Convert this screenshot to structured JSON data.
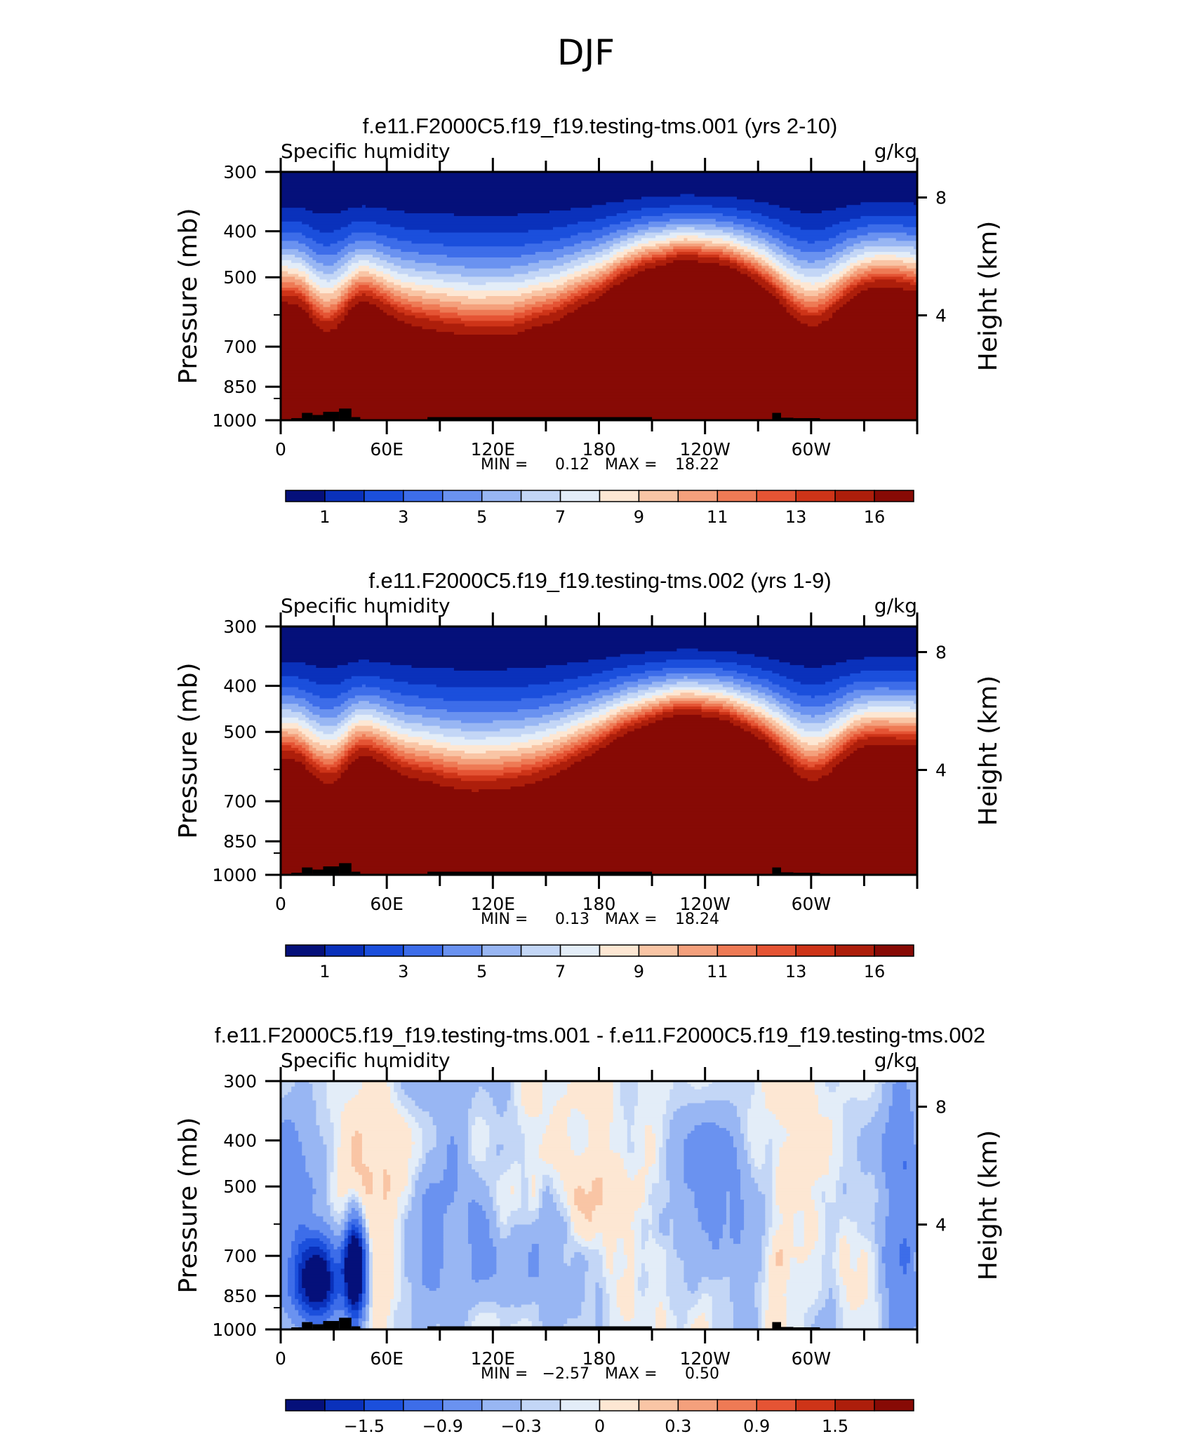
{
  "figure": {
    "title": "DJF"
  },
  "chart_data": [
    {
      "type": "contour",
      "title": "f.e11.F2000C5.f19_f19.testing-tms.001 (yrs 2-10)",
      "left_label": "Specific humidity",
      "right_label": "g/kg",
      "ylabel": "Pressure (mb)",
      "ylabel_right": "Height (km)",
      "yticks": [
        "300",
        "400",
        "500",
        "700",
        "850",
        "1000"
      ],
      "yticks_right": [
        "8",
        "4"
      ],
      "xticks": [
        "0",
        "60E",
        "120E",
        "180",
        "120W",
        "60W"
      ],
      "stats": {
        "min_label": "MIN =",
        "min": "0.12",
        "max_label": "MAX =",
        "max": "18.22"
      },
      "colorbar": {
        "labels": [
          "1",
          "3",
          "5",
          "7",
          "9",
          "11",
          "13",
          "16"
        ],
        "colors": [
          "#05107a",
          "#0a31bb",
          "#1b4fdc",
          "#3d6de9",
          "#6a92f0",
          "#98b6f3",
          "#c3d6f6",
          "#e3edf8",
          "#fde7d3",
          "#f9c5a5",
          "#f4a07c",
          "#ee7a55",
          "#e55434",
          "#ce3418",
          "#ad1e0b",
          "#870a05"
        ]
      },
      "field": "mean"
    },
    {
      "type": "contour",
      "title": "f.e11.F2000C5.f19_f19.testing-tms.002 (yrs 1-9)",
      "left_label": "Specific humidity",
      "right_label": "g/kg",
      "ylabel": "Pressure (mb)",
      "ylabel_right": "Height (km)",
      "yticks": [
        "300",
        "400",
        "500",
        "700",
        "850",
        "1000"
      ],
      "yticks_right": [
        "8",
        "4"
      ],
      "xticks": [
        "0",
        "60E",
        "120E",
        "180",
        "120W",
        "60W"
      ],
      "stats": {
        "min_label": "MIN =",
        "min": "0.13",
        "max_label": "MAX =",
        "max": "18.24"
      },
      "colorbar": {
        "labels": [
          "1",
          "3",
          "5",
          "7",
          "9",
          "11",
          "13",
          "16"
        ],
        "colors": [
          "#05107a",
          "#0a31bb",
          "#1b4fdc",
          "#3d6de9",
          "#6a92f0",
          "#98b6f3",
          "#c3d6f6",
          "#e3edf8",
          "#fde7d3",
          "#f9c5a5",
          "#f4a07c",
          "#ee7a55",
          "#e55434",
          "#ce3418",
          "#ad1e0b",
          "#870a05"
        ]
      },
      "field": "mean"
    },
    {
      "type": "contour",
      "title": "f.e11.F2000C5.f19_f19.testing-tms.001 - f.e11.F2000C5.f19_f19.testing-tms.002",
      "left_label": "Specific humidity",
      "right_label": "g/kg",
      "ylabel": "Pressure (mb)",
      "ylabel_right": "Height (km)",
      "yticks": [
        "300",
        "400",
        "500",
        "700",
        "850",
        "1000"
      ],
      "yticks_right": [
        "8",
        "4"
      ],
      "xticks": [
        "0",
        "60E",
        "120E",
        "180",
        "120W",
        "60W"
      ],
      "stats": {
        "min_label": "MIN =",
        "min": "−2.57",
        "max_label": "MAX =",
        "max": "0.50"
      },
      "colorbar": {
        "labels": [
          "−1.5",
          "−0.9",
          "−0.3",
          "0",
          "0.3",
          "0.9",
          "1.5"
        ],
        "colors": [
          "#05107a",
          "#0a31bb",
          "#1b4fdc",
          "#3d6de9",
          "#6a92f0",
          "#98b6f3",
          "#c3d6f6",
          "#e3edf8",
          "#fde7d3",
          "#f9c5a5",
          "#f4a07c",
          "#ee7a55",
          "#e55434",
          "#ce3418",
          "#ad1e0b",
          "#870a05"
        ]
      },
      "field": "difference"
    }
  ]
}
